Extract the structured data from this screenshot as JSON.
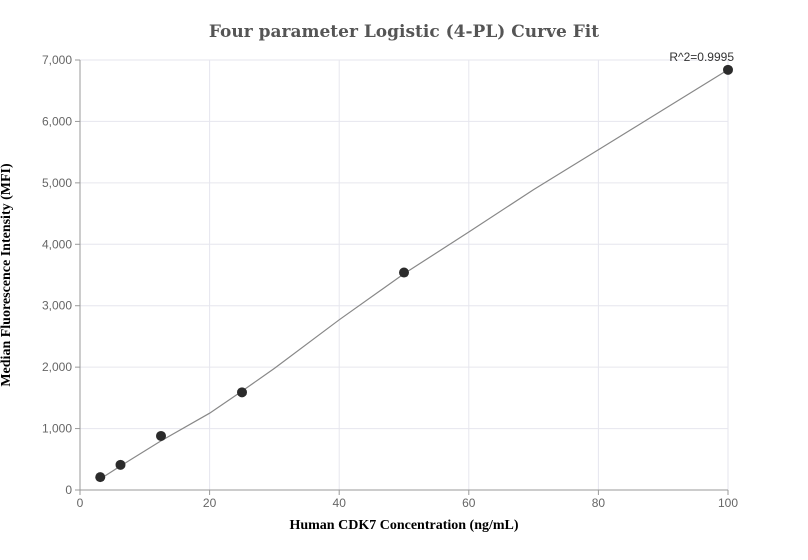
{
  "chart_data": {
    "type": "scatter",
    "title": "Four parameter Logistic (4-PL) Curve Fit",
    "xlabel": "Human CDK7 Concentration (ng/mL)",
    "ylabel": "Median Fluorescence Intensity (MFI)",
    "xlim": [
      0,
      100
    ],
    "ylim": [
      0,
      7000
    ],
    "x_ticks": [
      0,
      20,
      40,
      60,
      80,
      100
    ],
    "x_tick_labels": [
      "0",
      "20",
      "40",
      "60",
      "80",
      "100"
    ],
    "y_ticks": [
      0,
      1000,
      2000,
      3000,
      4000,
      5000,
      6000,
      7000
    ],
    "y_tick_labels": [
      "0",
      "1,000",
      "2,000",
      "3,000",
      "4,000",
      "5,000",
      "6,000",
      "7,000"
    ],
    "grid": true,
    "series": [
      {
        "points": [
          {
            "x": 3.125,
            "y": 210
          },
          {
            "x": 6.25,
            "y": 410
          },
          {
            "x": 12.5,
            "y": 880
          },
          {
            "x": 25,
            "y": 1590
          },
          {
            "x": 50,
            "y": 3540
          },
          {
            "x": 100,
            "y": 6840
          }
        ]
      }
    ],
    "fit_curve": {
      "type": "4PL",
      "points": [
        {
          "x": 3.125,
          "y": 180
        },
        {
          "x": 6.25,
          "y": 390
        },
        {
          "x": 12.5,
          "y": 800
        },
        {
          "x": 20,
          "y": 1250
        },
        {
          "x": 25,
          "y": 1610
        },
        {
          "x": 30,
          "y": 1980
        },
        {
          "x": 40,
          "y": 2770
        },
        {
          "x": 50,
          "y": 3520
        },
        {
          "x": 60,
          "y": 4200
        },
        {
          "x": 70,
          "y": 4890
        },
        {
          "x": 80,
          "y": 5540
        },
        {
          "x": 90,
          "y": 6190
        },
        {
          "x": 100,
          "y": 6840
        }
      ]
    },
    "annotation": "R^2=0.9995",
    "colors": {
      "point": "#2b2b2b",
      "curve": "#888888",
      "grid": "#e6e6ee",
      "axis": "#999999",
      "tick_text": "#666666",
      "title": "#555555"
    }
  }
}
